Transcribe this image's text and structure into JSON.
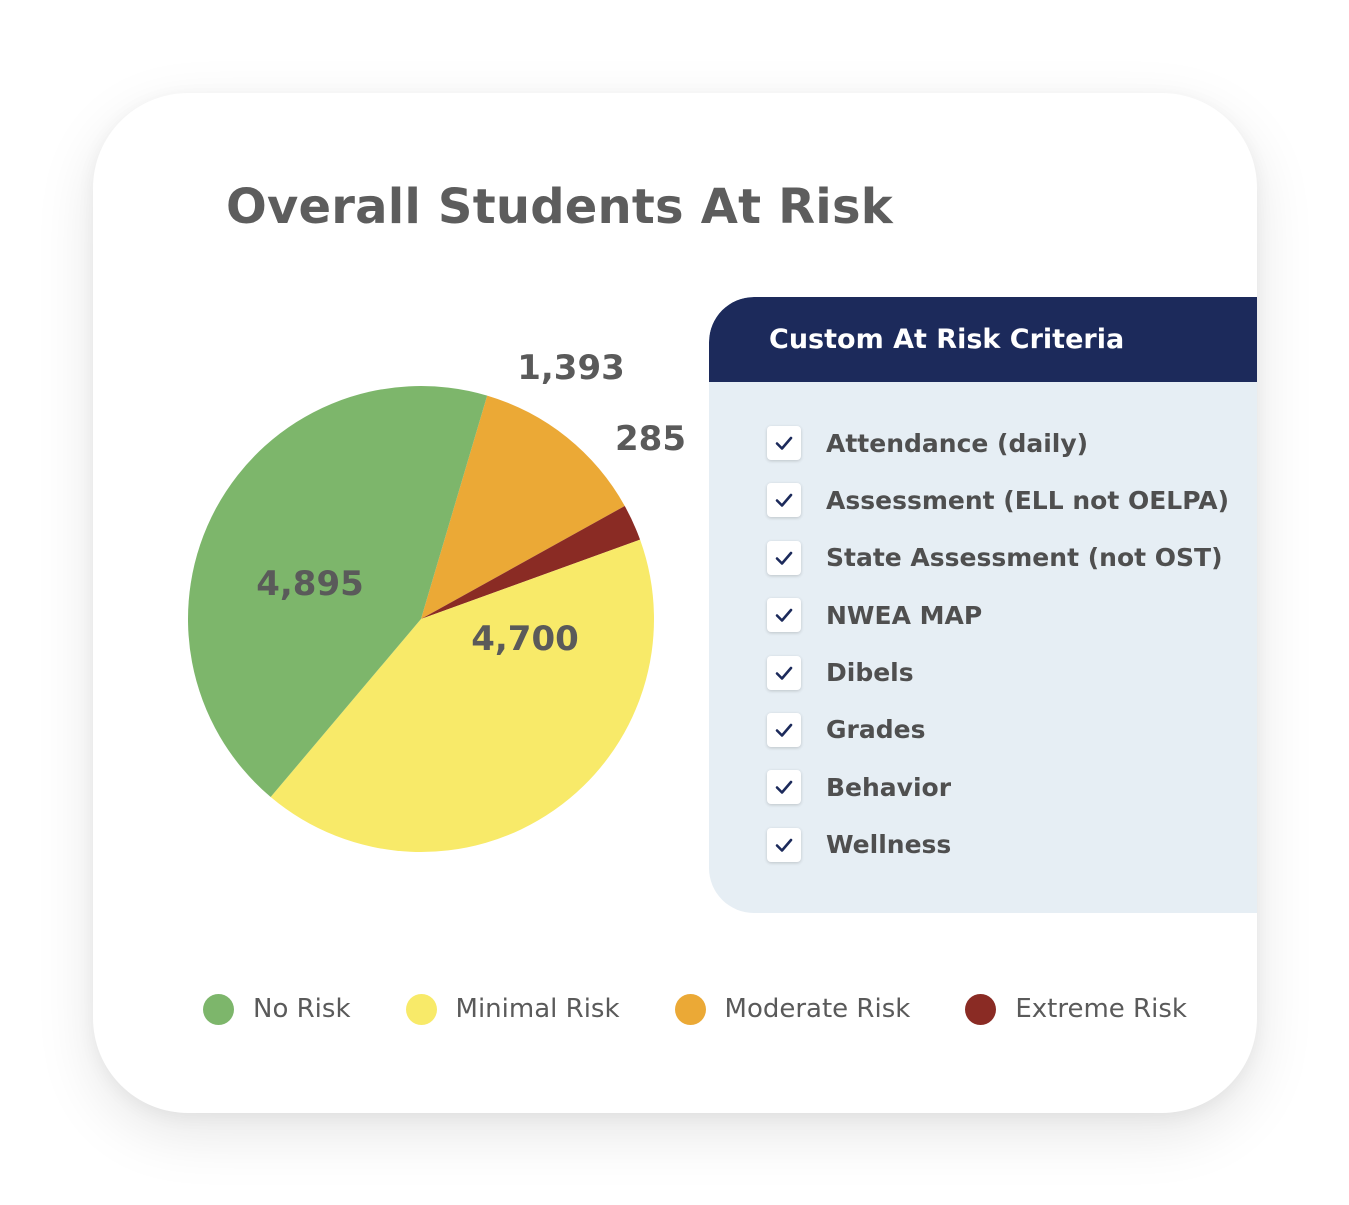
{
  "chart_data": {
    "type": "pie",
    "title": "Overall Students At Risk",
    "categories": [
      "No Risk",
      "Minimal Risk",
      "Moderate Risk",
      "Extreme Risk"
    ],
    "values": [
      4895,
      4700,
      1393,
      285
    ],
    "value_labels": [
      "4,895",
      "4,700",
      "1,393",
      "285"
    ],
    "colors": [
      "#7db66b",
      "#f8ea69",
      "#eba936",
      "#8a2b24"
    ],
    "legend_position": "bottom"
  },
  "criteria_panel": {
    "title": "Custom At Risk Criteria",
    "items": [
      {
        "label": "Attendance (daily)",
        "checked": true
      },
      {
        "label": "Assessment (ELL not OELPA)",
        "checked": true
      },
      {
        "label": "State Assessment (not OST)",
        "checked": true
      },
      {
        "label": "NWEA MAP",
        "checked": true
      },
      {
        "label": "Dibels",
        "checked": true
      },
      {
        "label": "Grades",
        "checked": true
      },
      {
        "label": "Behavior",
        "checked": true
      },
      {
        "label": "Wellness",
        "checked": true
      }
    ],
    "header_color": "#1c2a5b",
    "panel_color": "#e6eef4",
    "check_color": "#1c2a5b"
  }
}
